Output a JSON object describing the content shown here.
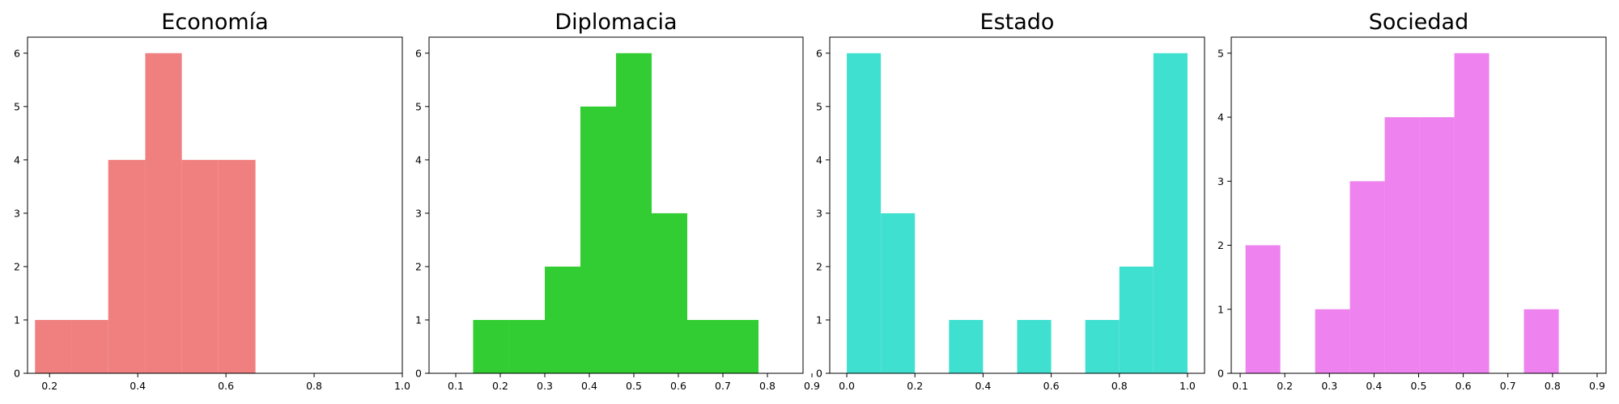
{
  "chart_data": [
    {
      "type": "bar",
      "title": "Economía",
      "color": "#f08080",
      "xlabel": "",
      "ylabel": "",
      "xlim": [
        0.15,
        1.0
      ],
      "ylim": [
        0,
        6.3
      ],
      "xticks": [
        "0.2",
        "0.4",
        "0.6",
        "0.8",
        "1.0"
      ],
      "yticks": [
        "0",
        "1",
        "2",
        "3",
        "4",
        "5",
        "6"
      ],
      "bins": [
        {
          "x0": 0.167,
          "x1": 0.25,
          "count": 1
        },
        {
          "x0": 0.25,
          "x1": 0.333,
          "count": 1
        },
        {
          "x0": 0.333,
          "x1": 0.417,
          "count": 4
        },
        {
          "x0": 0.417,
          "x1": 0.5,
          "count": 6
        },
        {
          "x0": 0.5,
          "x1": 0.583,
          "count": 4
        },
        {
          "x0": 0.583,
          "x1": 0.667,
          "count": 4
        }
      ]
    },
    {
      "type": "bar",
      "title": "Diplomacia",
      "color": "#32cd32",
      "xlabel": "",
      "ylabel": "",
      "xlim": [
        0.04,
        0.88
      ],
      "ylim": [
        0,
        6.3
      ],
      "xticks": [
        "0.1",
        "0.2",
        "0.3",
        "0.4",
        "0.5",
        "0.6",
        "0.7",
        "0.8",
        "0.9"
      ],
      "yticks": [
        "0",
        "1",
        "2",
        "3",
        "4",
        "5",
        "6"
      ],
      "bins": [
        {
          "x0": 0.139,
          "x1": 0.219,
          "count": 1
        },
        {
          "x0": 0.219,
          "x1": 0.3,
          "count": 1
        },
        {
          "x0": 0.3,
          "x1": 0.38,
          "count": 2
        },
        {
          "x0": 0.38,
          "x1": 0.46,
          "count": 5
        },
        {
          "x0": 0.46,
          "x1": 0.54,
          "count": 6
        },
        {
          "x0": 0.54,
          "x1": 0.62,
          "count": 3
        },
        {
          "x0": 0.62,
          "x1": 0.7,
          "count": 1
        },
        {
          "x0": 0.7,
          "x1": 0.78,
          "count": 1
        }
      ]
    },
    {
      "type": "bar",
      "title": "Estado",
      "color": "#40e0d0",
      "xlabel": "",
      "ylabel": "",
      "xlim": [
        -0.05,
        1.05
      ],
      "ylim": [
        0,
        6.3
      ],
      "xticks": [
        "0.0",
        "0.2",
        "0.4",
        "0.6",
        "0.8",
        "1.0"
      ],
      "yticks": [
        "0",
        "1",
        "2",
        "3",
        "4",
        "5",
        "6"
      ],
      "bins": [
        {
          "x0": 0.0,
          "x1": 0.1,
          "count": 6
        },
        {
          "x0": 0.1,
          "x1": 0.2,
          "count": 3
        },
        {
          "x0": 0.2,
          "x1": 0.3,
          "count": 0
        },
        {
          "x0": 0.3,
          "x1": 0.4,
          "count": 1
        },
        {
          "x0": 0.4,
          "x1": 0.5,
          "count": 0
        },
        {
          "x0": 0.5,
          "x1": 0.6,
          "count": 1
        },
        {
          "x0": 0.6,
          "x1": 0.7,
          "count": 0
        },
        {
          "x0": 0.7,
          "x1": 0.8,
          "count": 1
        },
        {
          "x0": 0.8,
          "x1": 0.9,
          "count": 2
        },
        {
          "x0": 0.9,
          "x1": 1.0,
          "count": 6
        }
      ]
    },
    {
      "type": "bar",
      "title": "Sociedad",
      "color": "#ee82ee",
      "xlabel": "",
      "ylabel": "",
      "xlim": [
        0.08,
        0.92
      ],
      "ylim": [
        0,
        5.25
      ],
      "xticks": [
        "0.1",
        "0.2",
        "0.3",
        "0.4",
        "0.5",
        "0.6",
        "0.7",
        "0.8",
        "0.9"
      ],
      "yticks": [
        "0",
        "1",
        "2",
        "3",
        "4",
        "5"
      ],
      "bins": [
        {
          "x0": 0.112,
          "x1": 0.19,
          "count": 2
        },
        {
          "x0": 0.19,
          "x1": 0.268,
          "count": 0
        },
        {
          "x0": 0.268,
          "x1": 0.346,
          "count": 1
        },
        {
          "x0": 0.346,
          "x1": 0.424,
          "count": 3
        },
        {
          "x0": 0.424,
          "x1": 0.502,
          "count": 4
        },
        {
          "x0": 0.502,
          "x1": 0.58,
          "count": 4
        },
        {
          "x0": 0.58,
          "x1": 0.658,
          "count": 5
        },
        {
          "x0": 0.658,
          "x1": 0.736,
          "count": 0
        },
        {
          "x0": 0.736,
          "x1": 0.814,
          "count": 1
        }
      ]
    }
  ]
}
